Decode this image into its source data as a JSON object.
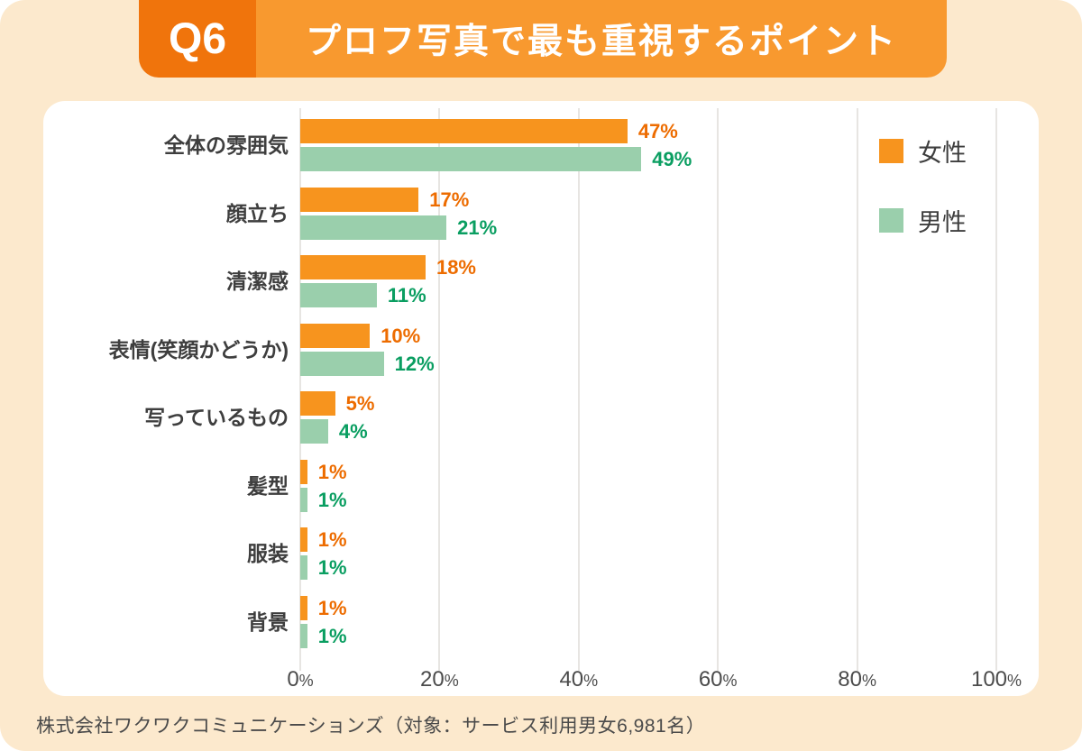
{
  "page": {
    "background_color": "#FCE9CD",
    "header": {
      "badge": "Q6",
      "badge_bg": "#F0740C",
      "title": "プロフ写真で最も重視するポイント",
      "title_bg": "#F8992F"
    },
    "footer": "株式会社ワクワクコミュニケーションズ（対象：サービス利用男女6,981名）"
  },
  "chart_data": {
    "type": "bar",
    "orientation": "horizontal",
    "title": "プロフ写真で最も重視するポイント",
    "categories": [
      "全体の雰囲気",
      "顔立ち",
      "清潔感",
      "表情(笑顔かどうか)",
      "写っているもの",
      "髪型",
      "服装",
      "背景"
    ],
    "series": [
      {
        "name": "女性",
        "color": "#F7941E",
        "label_color": "#ED6C00",
        "values": [
          47,
          17,
          18,
          10,
          5,
          1,
          1,
          1
        ]
      },
      {
        "name": "男性",
        "color": "#9ACFAC",
        "label_color": "#0A9E61",
        "values": [
          49,
          21,
          11,
          12,
          4,
          1,
          1,
          1
        ]
      }
    ],
    "value_suffix": "%",
    "x_ticks": [
      "0%",
      "20%",
      "40%",
      "60%",
      "80%",
      "100%"
    ],
    "xlim": [
      0,
      100
    ],
    "grid": true,
    "legend_position": "top-right"
  }
}
